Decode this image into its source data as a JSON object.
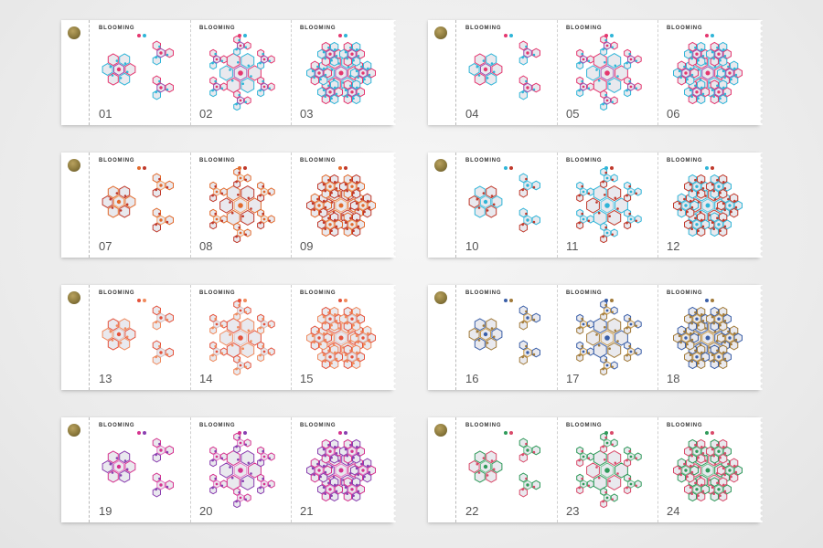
{
  "brand_label": "BLOOMING",
  "strips": [
    {
      "palette": [
        "#e5376f",
        "#2fb5d8",
        "#9d4fb0"
      ],
      "numbers": [
        "01",
        "02",
        "03"
      ]
    },
    {
      "palette": [
        "#e5376f",
        "#2fb5d8",
        "#9d4fb0"
      ],
      "numbers": [
        "04",
        "05",
        "06"
      ]
    },
    {
      "palette": [
        "#e26a2c",
        "#c0392b",
        "#f1a36c"
      ],
      "numbers": [
        "07",
        "08",
        "09"
      ]
    },
    {
      "palette": [
        "#2fb5d8",
        "#c0392b",
        "#5fc6e0"
      ],
      "numbers": [
        "10",
        "11",
        "12"
      ]
    },
    {
      "palette": [
        "#e5533c",
        "#f08a5d",
        "#d9c2c2"
      ],
      "numbers": [
        "13",
        "14",
        "15"
      ]
    },
    {
      "palette": [
        "#3a5fa8",
        "#a27b3a",
        "#c79a4b"
      ],
      "numbers": [
        "16",
        "17",
        "18"
      ]
    },
    {
      "palette": [
        "#d6338f",
        "#8a3fb0",
        "#e57bc4"
      ],
      "numbers": [
        "19",
        "20",
        "21"
      ]
    },
    {
      "palette": [
        "#2f9a5a",
        "#d94a6a",
        "#6cc08e"
      ],
      "numbers": [
        "22",
        "23",
        "24"
      ]
    }
  ]
}
